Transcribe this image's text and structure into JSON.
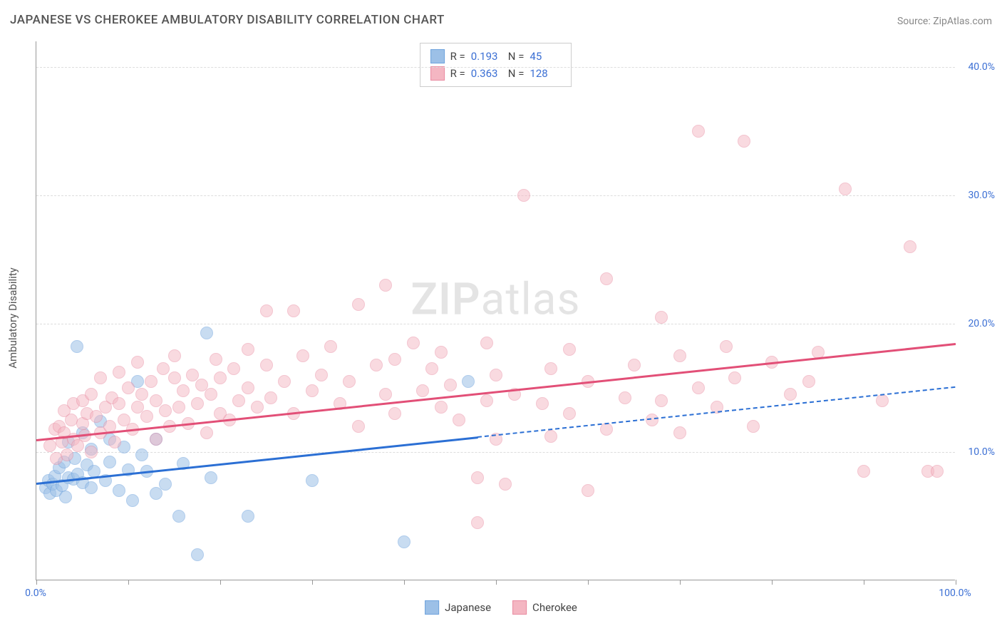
{
  "title": "JAPANESE VS CHEROKEE AMBULATORY DISABILITY CORRELATION CHART",
  "source_label": "Source:",
  "source_name": "ZipAtlas.com",
  "y_axis_label": "Ambulatory Disability",
  "watermark": {
    "part1": "ZIP",
    "part2": "atlas"
  },
  "chart": {
    "type": "scatter",
    "xlim": [
      0,
      100
    ],
    "ylim": [
      0,
      42
    ],
    "x_ticks": [
      0,
      10,
      20,
      30,
      40,
      50,
      60,
      70,
      80,
      90,
      100
    ],
    "x_tick_labels": {
      "0": "0.0%",
      "100": "100.0%"
    },
    "y_ticks": [
      10,
      20,
      30,
      40
    ],
    "y_tick_labels": [
      "10.0%",
      "20.0%",
      "30.0%",
      "40.0%"
    ],
    "grid_color": "#dddddd",
    "axis_color": "#999999",
    "background_color": "#ffffff",
    "label_color": "#3b6fd4",
    "point_radius": 9,
    "series": [
      {
        "name": "Japanese",
        "fill_color": "#9cc0e7",
        "fill_opacity": 0.55,
        "stroke_color": "#6fa3dd",
        "line_color": "#2b6fd4",
        "r": "0.193",
        "n": "45",
        "trend": {
          "x1": 0,
          "y1": 7.6,
          "x2": 48,
          "y2": 11.2,
          "solid": true
        },
        "trend_ext": {
          "x1": 48,
          "y1": 11.2,
          "x2": 100,
          "y2": 15.1
        },
        "points": [
          [
            1,
            7.2
          ],
          [
            1.3,
            7.8
          ],
          [
            1.5,
            6.8
          ],
          [
            1.8,
            7.5
          ],
          [
            2,
            8.1
          ],
          [
            2.2,
            7.0
          ],
          [
            2.5,
            8.8
          ],
          [
            2.8,
            7.4
          ],
          [
            3,
            9.2
          ],
          [
            3.2,
            6.5
          ],
          [
            3.5,
            8.0
          ],
          [
            3.5,
            10.8
          ],
          [
            4,
            7.9
          ],
          [
            4.2,
            9.5
          ],
          [
            4.5,
            8.3
          ],
          [
            4.4,
            18.2
          ],
          [
            5,
            7.6
          ],
          [
            5,
            11.5
          ],
          [
            5.5,
            9.0
          ],
          [
            6,
            7.2
          ],
          [
            6,
            10.2
          ],
          [
            6.3,
            8.5
          ],
          [
            7,
            12.4
          ],
          [
            7.5,
            7.8
          ],
          [
            8,
            9.2
          ],
          [
            8,
            11.0
          ],
          [
            9,
            7.0
          ],
          [
            9.5,
            10.4
          ],
          [
            10,
            8.6
          ],
          [
            10.5,
            6.2
          ],
          [
            11,
            15.5
          ],
          [
            11.5,
            9.8
          ],
          [
            12,
            8.5
          ],
          [
            13,
            6.8
          ],
          [
            13,
            11.0
          ],
          [
            14,
            7.5
          ],
          [
            15.5,
            5.0
          ],
          [
            16,
            9.1
          ],
          [
            17.5,
            2.0
          ],
          [
            18.5,
            19.3
          ],
          [
            19,
            8.0
          ],
          [
            23,
            5.0
          ],
          [
            30,
            7.8
          ],
          [
            40,
            3.0
          ],
          [
            47,
            15.5
          ]
        ]
      },
      {
        "name": "Cherokee",
        "fill_color": "#f4b6c2",
        "fill_opacity": 0.5,
        "stroke_color": "#e98ba1",
        "line_color": "#e24f77",
        "r": "0.363",
        "n": "128",
        "trend": {
          "x1": 0,
          "y1": 11.0,
          "x2": 100,
          "y2": 18.5,
          "solid": true
        },
        "points": [
          [
            1.5,
            10.5
          ],
          [
            2,
            11.8
          ],
          [
            2.2,
            9.5
          ],
          [
            2.5,
            12.0
          ],
          [
            2.8,
            10.8
          ],
          [
            3,
            13.2
          ],
          [
            3,
            11.5
          ],
          [
            3.3,
            9.8
          ],
          [
            3.8,
            12.5
          ],
          [
            4,
            11.0
          ],
          [
            4,
            13.8
          ],
          [
            4.5,
            10.5
          ],
          [
            5,
            12.2
          ],
          [
            5,
            14.0
          ],
          [
            5.3,
            11.3
          ],
          [
            5.5,
            13.0
          ],
          [
            6,
            10.0
          ],
          [
            6,
            14.5
          ],
          [
            6.5,
            12.8
          ],
          [
            7,
            11.5
          ],
          [
            7,
            15.8
          ],
          [
            7.5,
            13.5
          ],
          [
            8,
            12.0
          ],
          [
            8.2,
            14.2
          ],
          [
            8.5,
            10.8
          ],
          [
            9,
            13.8
          ],
          [
            9,
            16.2
          ],
          [
            9.5,
            12.5
          ],
          [
            10,
            15.0
          ],
          [
            10.5,
            11.8
          ],
          [
            11,
            13.5
          ],
          [
            11,
            17.0
          ],
          [
            11.5,
            14.5
          ],
          [
            12,
            12.8
          ],
          [
            12.5,
            15.5
          ],
          [
            13,
            11.0
          ],
          [
            13,
            14.0
          ],
          [
            13.8,
            16.5
          ],
          [
            14,
            13.2
          ],
          [
            14.5,
            12.0
          ],
          [
            15,
            15.8
          ],
          [
            15,
            17.5
          ],
          [
            15.5,
            13.5
          ],
          [
            16,
            14.8
          ],
          [
            16.5,
            12.2
          ],
          [
            17,
            16.0
          ],
          [
            17.5,
            13.8
          ],
          [
            18,
            15.2
          ],
          [
            18.5,
            11.5
          ],
          [
            19,
            14.5
          ],
          [
            19.5,
            17.2
          ],
          [
            20,
            13.0
          ],
          [
            20,
            15.8
          ],
          [
            21,
            12.5
          ],
          [
            21.5,
            16.5
          ],
          [
            22,
            14.0
          ],
          [
            23,
            15.0
          ],
          [
            23,
            18.0
          ],
          [
            24,
            13.5
          ],
          [
            25,
            16.8
          ],
          [
            25,
            21.0
          ],
          [
            25.5,
            14.2
          ],
          [
            27,
            15.5
          ],
          [
            28,
            13.0
          ],
          [
            28,
            21.0
          ],
          [
            29,
            17.5
          ],
          [
            30,
            14.8
          ],
          [
            31,
            16.0
          ],
          [
            32,
            18.2
          ],
          [
            33,
            13.8
          ],
          [
            34,
            15.5
          ],
          [
            35,
            21.5
          ],
          [
            35,
            12.0
          ],
          [
            37,
            16.8
          ],
          [
            38,
            14.5
          ],
          [
            38,
            23.0
          ],
          [
            39,
            17.2
          ],
          [
            39,
            13.0
          ],
          [
            41,
            18.5
          ],
          [
            42,
            14.8
          ],
          [
            43,
            16.5
          ],
          [
            44,
            13.5
          ],
          [
            44,
            17.8
          ],
          [
            45,
            15.2
          ],
          [
            46,
            12.5
          ],
          [
            48,
            8.0
          ],
          [
            48,
            4.5
          ],
          [
            49,
            14.0
          ],
          [
            49,
            18.5
          ],
          [
            50,
            11.0
          ],
          [
            50,
            16.0
          ],
          [
            51,
            7.5
          ],
          [
            52,
            14.5
          ],
          [
            53,
            30.0
          ],
          [
            55,
            13.8
          ],
          [
            56,
            11.2
          ],
          [
            56,
            16.5
          ],
          [
            58,
            18.0
          ],
          [
            58,
            13.0
          ],
          [
            60,
            7.0
          ],
          [
            60,
            15.5
          ],
          [
            62,
            11.8
          ],
          [
            62,
            23.5
          ],
          [
            64,
            14.2
          ],
          [
            65,
            16.8
          ],
          [
            67,
            12.5
          ],
          [
            68,
            20.5
          ],
          [
            68,
            14.0
          ],
          [
            70,
            11.5
          ],
          [
            70,
            17.5
          ],
          [
            72,
            15.0
          ],
          [
            72,
            35.0
          ],
          [
            74,
            13.5
          ],
          [
            75,
            18.2
          ],
          [
            76,
            15.8
          ],
          [
            77,
            34.2
          ],
          [
            78,
            12.0
          ],
          [
            80,
            17.0
          ],
          [
            82,
            14.5
          ],
          [
            84,
            15.5
          ],
          [
            85,
            17.8
          ],
          [
            88,
            30.5
          ],
          [
            90,
            8.5
          ],
          [
            92,
            14.0
          ],
          [
            95,
            26.0
          ],
          [
            97,
            8.5
          ],
          [
            98,
            8.5
          ]
        ]
      }
    ]
  },
  "bottom_legend": [
    {
      "label": "Japanese",
      "fill": "#9cc0e7",
      "stroke": "#6fa3dd"
    },
    {
      "label": "Cherokee",
      "fill": "#f4b6c2",
      "stroke": "#e98ba1"
    }
  ]
}
